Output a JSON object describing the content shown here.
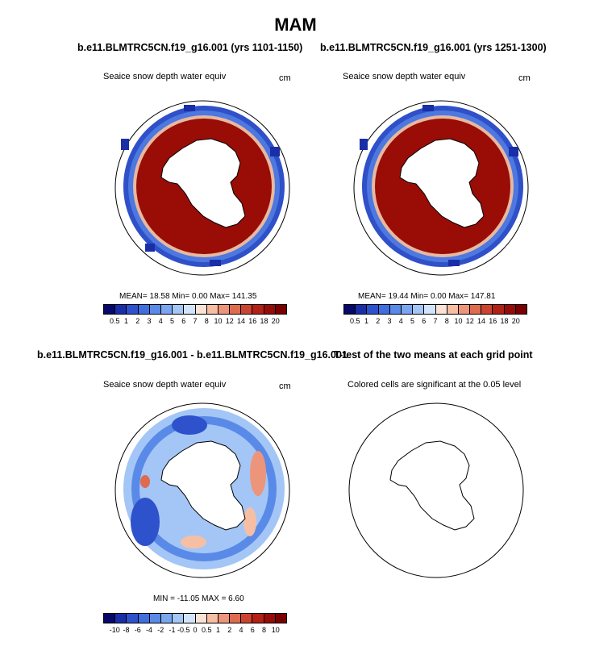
{
  "title": "MAM",
  "panels": [
    {
      "case_title": "b.e11.BLMTRC5CN.f19_g16.001 (yrs 1101-1150)",
      "variable": "Seaice snow depth water equiv",
      "units": "cm",
      "stats": "MEAN=  18.58  Min=   0.00  Max= 141.35"
    },
    {
      "case_title": "b.e11.BLMTRC5CN.f19_g16.001 (yrs 1251-1300)",
      "variable": "Seaice snow depth water equiv",
      "units": "cm",
      "stats": "MEAN=  19.44  Min=   0.00  Max= 147.81"
    },
    {
      "case_title": "b.e11.BLMTRC5CN.f19_g16.001 - b.e11.BLMTRC5CN.f19_g16.001",
      "variable": "Seaice snow depth water equiv",
      "units": "cm",
      "stats": "MIN = -11.05  MAX =   6.60"
    },
    {
      "case_title": "T-test of the two means at each grid point",
      "variable": "Colored cells are significant at the 0.05 level"
    }
  ],
  "colorbar_abs": {
    "labels": [
      "0.5",
      "1",
      "2",
      "3",
      "4",
      "5",
      "6",
      "7",
      "8",
      "10",
      "12",
      "14",
      "16",
      "18",
      "20"
    ],
    "colors": [
      "#08086b",
      "#1a2ea8",
      "#2e52cc",
      "#3f6ee0",
      "#5a8ae8",
      "#7aa6f0",
      "#a4c6f6",
      "#d2e4fa",
      "#fbe2d6",
      "#f6bfa4",
      "#ec957a",
      "#e06a4e",
      "#cc4430",
      "#b32016",
      "#960c08",
      "#7a0000"
    ]
  },
  "colorbar_diff": {
    "labels": [
      "-10",
      "-8",
      "-6",
      "-4",
      "-2",
      "-1",
      "-0.5",
      "0",
      "0.5",
      "1",
      "2",
      "4",
      "6",
      "8",
      "10"
    ],
    "colors": [
      "#08086b",
      "#1a2ea8",
      "#2e52cc",
      "#3f6ee0",
      "#5a8ae8",
      "#7aa6f0",
      "#a4c6f6",
      "#d2e4fa",
      "#fbe2d6",
      "#f6bfa4",
      "#ec957a",
      "#e06a4e",
      "#cc4430",
      "#b32016",
      "#960c08",
      "#7a0000"
    ]
  }
}
